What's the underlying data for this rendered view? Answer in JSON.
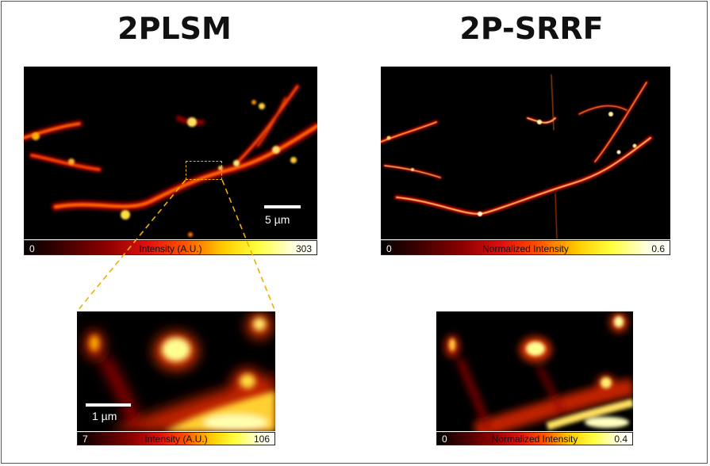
{
  "panels": {
    "left_title": "2PLSM",
    "right_title": "2P-SRRF"
  },
  "colorbars": {
    "top_left": {
      "min": "0",
      "label": "Intensity (A.U.)",
      "max": "303"
    },
    "top_right": {
      "min": "0",
      "label": "Normalized Intensity",
      "max": "0.6"
    },
    "bottom_left": {
      "min": "7",
      "label": "Intensity (A.U.)",
      "max": "106"
    },
    "bottom_right": {
      "min": "0",
      "label": "Normalized Intensity",
      "max": "0.4"
    }
  },
  "scalebars": {
    "top_left": "5 µm",
    "bottom_left": "1 µm"
  },
  "colors": {
    "inset_box": "#f0b000",
    "guide_lines": "#f0b000"
  }
}
